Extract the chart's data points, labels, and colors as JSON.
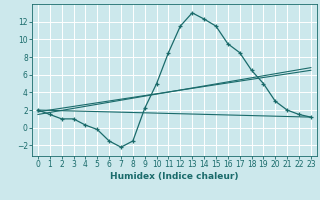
{
  "title": "",
  "xlabel": "Humidex (Indice chaleur)",
  "bg_color": "#cce8ec",
  "grid_color": "#ffffff",
  "line_color": "#1a6b6b",
  "xlim": [
    -0.5,
    23.5
  ],
  "ylim": [
    -3.2,
    14.0
  ],
  "xticks": [
    0,
    1,
    2,
    3,
    4,
    5,
    6,
    7,
    8,
    9,
    10,
    11,
    12,
    13,
    14,
    15,
    16,
    17,
    18,
    19,
    20,
    21,
    22,
    23
  ],
  "yticks": [
    -2,
    0,
    2,
    4,
    6,
    8,
    10,
    12
  ],
  "main_x": [
    0,
    1,
    2,
    3,
    4,
    5,
    6,
    7,
    8,
    9,
    10,
    11,
    12,
    13,
    14,
    15,
    16,
    17,
    18,
    19,
    20,
    21,
    22,
    23
  ],
  "main_y": [
    2,
    1.5,
    1,
    1,
    0.3,
    -0.2,
    -1.5,
    -2.2,
    -1.5,
    2.2,
    5,
    8.5,
    11.5,
    13,
    12.3,
    11.5,
    9.5,
    8.5,
    6.5,
    5,
    3,
    2,
    1.5,
    1.2
  ],
  "trend1_x": [
    0,
    23
  ],
  "trend1_y": [
    2.0,
    1.2
  ],
  "trend2_x": [
    0,
    23
  ],
  "trend2_y": [
    1.8,
    6.5
  ],
  "trend3_x": [
    0,
    23
  ],
  "trend3_y": [
    1.5,
    6.8
  ],
  "xlabel_fontsize": 6.5,
  "tick_fontsize": 5.5
}
